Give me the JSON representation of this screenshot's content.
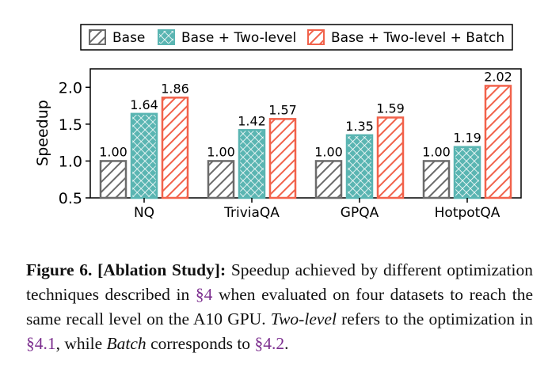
{
  "chart_data": {
    "type": "bar",
    "categories": [
      "NQ",
      "TriviaQA",
      "GPQA",
      "HotpotQA"
    ],
    "series": [
      {
        "name": "Base",
        "values": [
          1.0,
          1.0,
          1.0,
          1.0
        ],
        "color": "#6b6b6b",
        "pattern": "diagonal-hatch"
      },
      {
        "name": "Base + Two-level",
        "values": [
          1.64,
          1.42,
          1.35,
          1.19
        ],
        "color": "#5ab5b2",
        "pattern": "crosshatch"
      },
      {
        "name": "Base + Two-level + Batch",
        "values": [
          1.86,
          1.57,
          1.59,
          2.02
        ],
        "color": "#f1624b",
        "pattern": "diagonal-hatch"
      }
    ],
    "value_labels": [
      [
        "1.00",
        "1.64",
        "1.86"
      ],
      [
        "1.00",
        "1.42",
        "1.57"
      ],
      [
        "1.00",
        "1.35",
        "1.59"
      ],
      [
        "1.00",
        "1.19",
        "2.02"
      ]
    ],
    "ylabel": "Speedup",
    "xlabel": "",
    "ylim": [
      0.5,
      2.25
    ],
    "yticks": [
      "0.5",
      "1.0",
      "1.5",
      "2.0"
    ],
    "grid": false,
    "legend_position": "top"
  },
  "caption": {
    "label": "Figure 6. [Ablation Study]:",
    "part1": " Speedup achieved by different optimization techniques described in ",
    "link1": "§4",
    "part2": " when evaluated on four datasets to reach the same recall level on the A10 GPU. ",
    "em1": "Two-level",
    "part3": " refers to the optimization in ",
    "link2": "§4.1",
    "part4": ", while ",
    "em2": "Batch",
    "part5": " corresponds to ",
    "link3": "§4.2",
    "part6": "."
  }
}
